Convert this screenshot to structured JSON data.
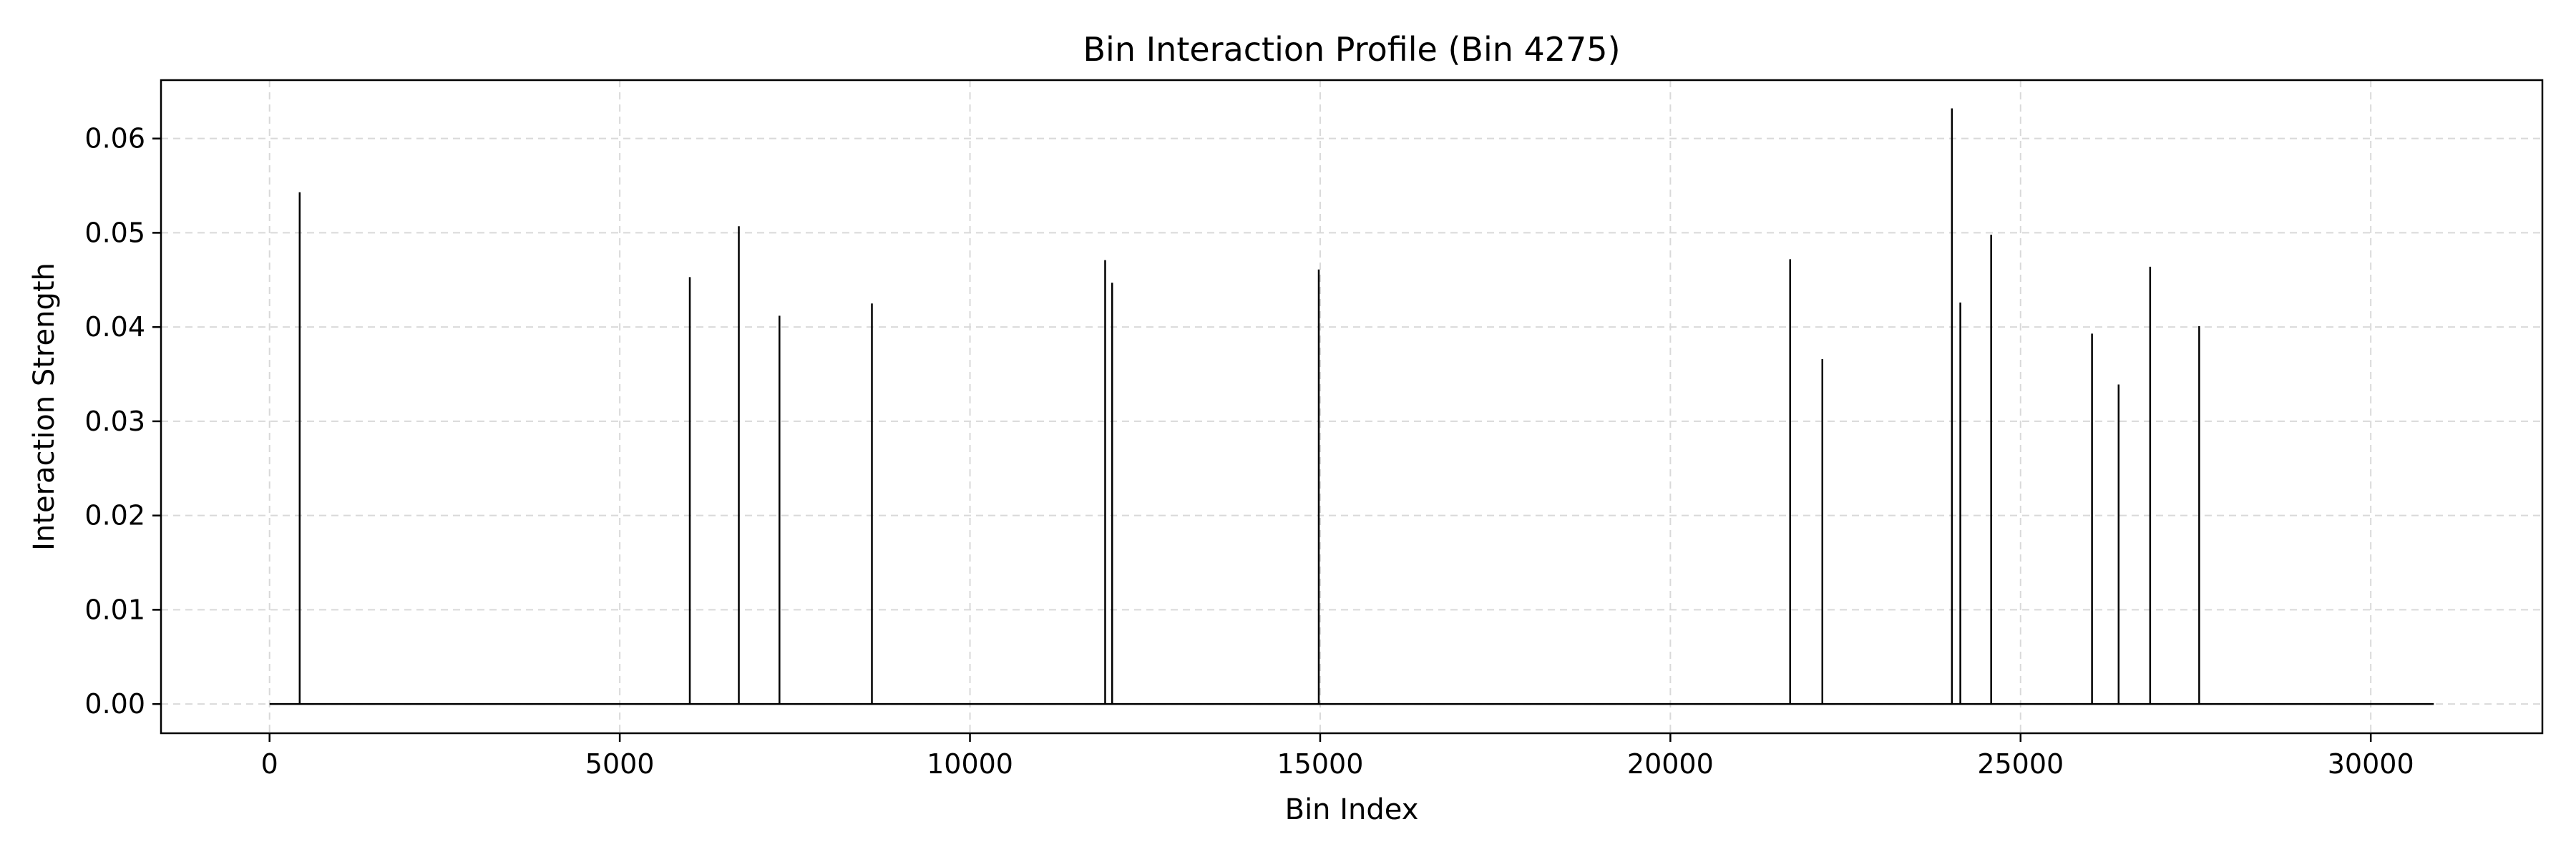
{
  "chart_data": {
    "type": "line",
    "title": "Bin Interaction Profile (Bin 4275)",
    "xlabel": "Bin Index",
    "ylabel": "Interaction Strength",
    "xlim": [
      -1550,
      32450
    ],
    "ylim": [
      -0.0031,
      0.0662
    ],
    "x_ticks": [
      0,
      5000,
      10000,
      15000,
      20000,
      25000,
      30000
    ],
    "y_ticks": [
      0.0,
      0.01,
      0.02,
      0.03,
      0.04,
      0.05,
      0.06
    ],
    "x_tick_labels": [
      "0",
      "5000",
      "10000",
      "15000",
      "20000",
      "25000",
      "30000"
    ],
    "y_tick_labels": [
      "0.00",
      "0.01",
      "0.02",
      "0.03",
      "0.04",
      "0.05",
      "0.06"
    ],
    "grid": true,
    "line_color": "#000000",
    "grid_color": "#d9d9d9",
    "baseline": {
      "x_start": 0,
      "x_end": 30900,
      "y": 0
    },
    "series": [
      {
        "points": [
          {
            "x": 430,
            "y": 0.0543
          },
          {
            "x": 6000,
            "y": 0.0453
          },
          {
            "x": 6700,
            "y": 0.0507
          },
          {
            "x": 7280,
            "y": 0.0412
          },
          {
            "x": 8600,
            "y": 0.0425
          },
          {
            "x": 11930,
            "y": 0.0471
          },
          {
            "x": 12030,
            "y": 0.0447
          },
          {
            "x": 14980,
            "y": 0.0461
          },
          {
            "x": 21710,
            "y": 0.0472
          },
          {
            "x": 22170,
            "y": 0.0366
          },
          {
            "x": 24020,
            "y": 0.0632
          },
          {
            "x": 24140,
            "y": 0.0426
          },
          {
            "x": 24580,
            "y": 0.0498
          },
          {
            "x": 26020,
            "y": 0.0393
          },
          {
            "x": 26400,
            "y": 0.0339
          },
          {
            "x": 26850,
            "y": 0.0464
          },
          {
            "x": 27550,
            "y": 0.0401
          }
        ]
      }
    ]
  }
}
